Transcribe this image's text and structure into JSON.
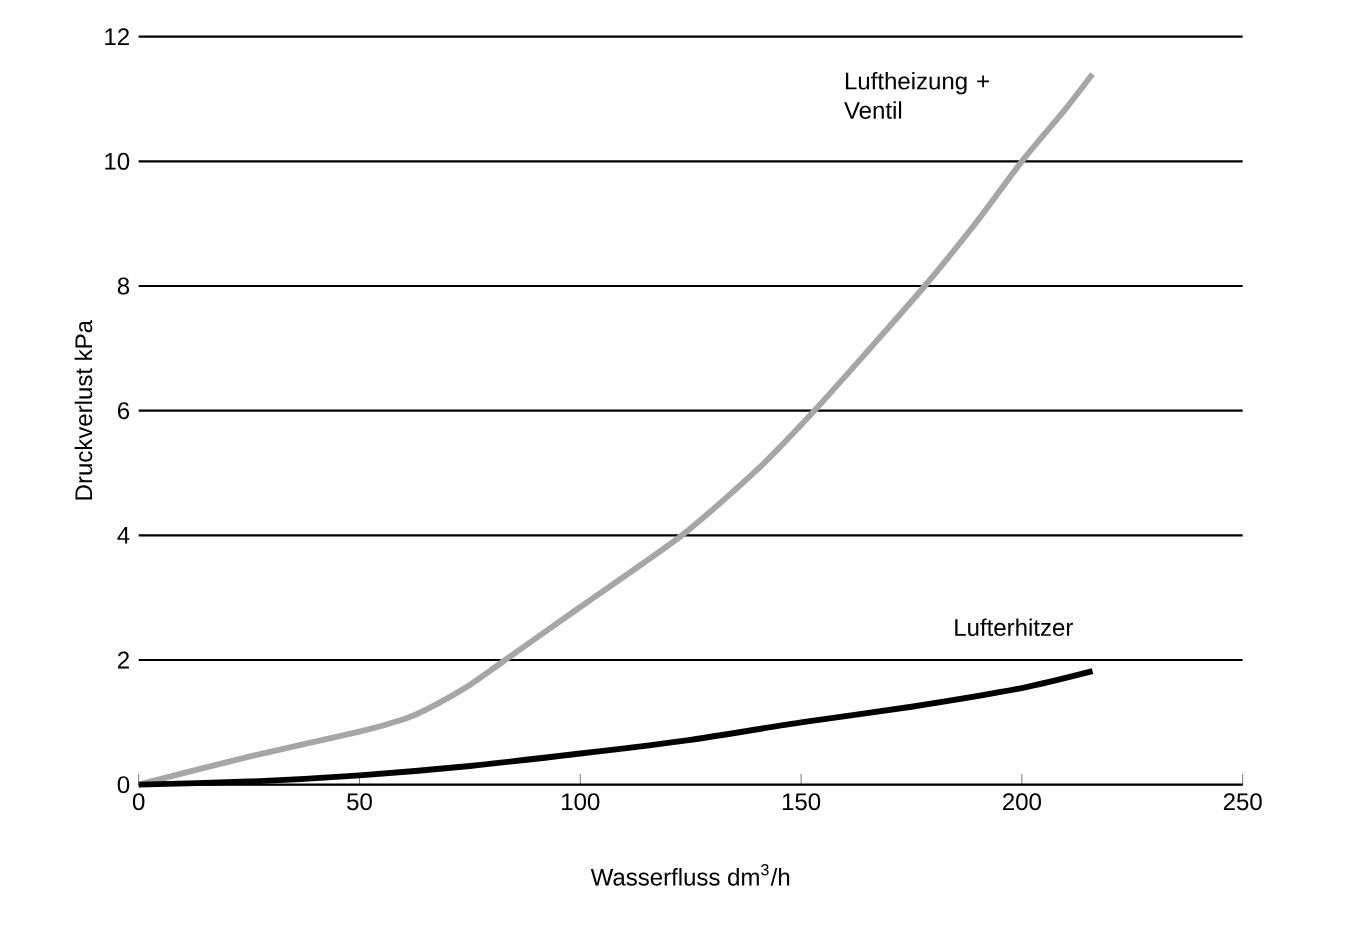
{
  "chart_data": {
    "type": "line",
    "xlabel": "Wasserfluss dm$^{3}$/h",
    "ylabel": "Druckverlust kPa",
    "xlim": [
      0,
      250
    ],
    "xticks": [
      0,
      50,
      100,
      150,
      200,
      250
    ],
    "ylim": [
      0,
      12
    ],
    "yticks": [
      0,
      2,
      4,
      6,
      8,
      10,
      12
    ],
    "grid": "y",
    "legend": false,
    "marker": "none",
    "line_style": "solid",
    "series": [
      {
        "name": "Luftheizung + Ventil",
        "color": "#a6a6a6",
        "x": [
          0,
          25,
          50,
          60,
          65,
          75,
          83,
          100,
          123,
          140,
          153,
          165,
          178,
          190,
          200,
          210,
          216
        ],
        "values": [
          0,
          0.45,
          0.85,
          1.05,
          1.2,
          1.6,
          2,
          2.85,
          4,
          5.05,
          6,
          6.95,
          8,
          9.05,
          10,
          10.85,
          11.4
        ]
      },
      {
        "name": "Lufterhitzer",
        "color": "#000000",
        "x": [
          0,
          25,
          50,
          75,
          100,
          125,
          150,
          175,
          200,
          216
        ],
        "values": [
          0,
          0.05,
          0.15,
          0.3,
          0.5,
          0.72,
          1.0,
          1.25,
          1.55,
          1.82
        ]
      }
    ]
  }
}
